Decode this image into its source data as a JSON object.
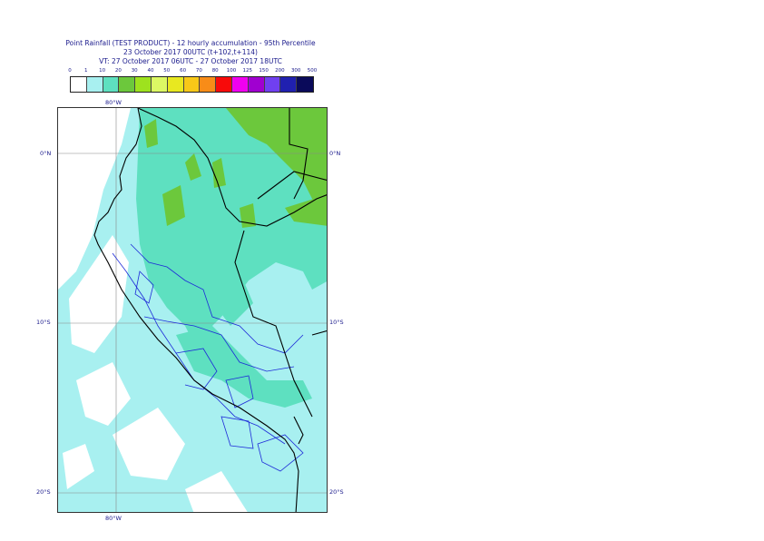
{
  "title": {
    "line1": "Point Rainfall (TEST PRODUCT) - 12 hourly accumulation - 95th Percentile",
    "line2": "23 October 2017 00UTC (t+102,t+114)",
    "line3": "VT: 27 October 2017 06UTC - 27 October 2017 18UTC"
  },
  "legend": {
    "thresholds": [
      "0",
      "1",
      "10",
      "20",
      "30",
      "40",
      "50",
      "60",
      "70",
      "80",
      "100",
      "125",
      "150",
      "200",
      "300",
      "500"
    ],
    "colors": [
      "#ffffff",
      "#a8f0f0",
      "#5ee0c0",
      "#6cc83c",
      "#9ee21e",
      "#dcf864",
      "#e8e820",
      "#f8c818",
      "#f88c18",
      "#f80a0a",
      "#f000f0",
      "#a000d0",
      "#7040f0",
      "#2020b0",
      "#0a0a5a"
    ]
  },
  "map": {
    "lon_label_top": "80°W",
    "lon_label_bottom": "80°W",
    "lat_labels": {
      "eq_left": "0°N",
      "eq_right": "0°N",
      "s10_left": "10°S",
      "s10_right": "10°S",
      "s20_left": "20°S",
      "s20_right": "20°S"
    }
  }
}
